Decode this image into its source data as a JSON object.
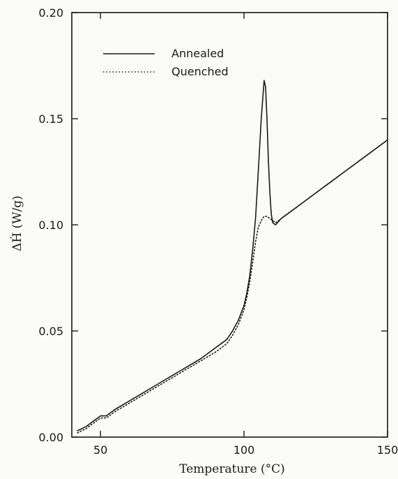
{
  "chart_data": {
    "type": "line",
    "title": "",
    "xlabel": "Temperature (°C)",
    "ylabel": "ΔḢ (W/g)",
    "xlim": [
      40,
      150
    ],
    "ylim": [
      0.0,
      0.2
    ],
    "x_ticks": [
      50,
      100,
      150
    ],
    "y_ticks": [
      0.0,
      0.05,
      0.1,
      0.15,
      0.2
    ],
    "x_tick_labels": [
      "50",
      "100",
      "150"
    ],
    "y_tick_labels": [
      "0.00",
      "0.05",
      "0.10",
      "0.15",
      "0.20"
    ],
    "grid": false,
    "legend_position": "top-left",
    "series": [
      {
        "name": "Annealed",
        "style": "solid",
        "color": "#1a1a1a",
        "points": [
          [
            42,
            0.003
          ],
          [
            45,
            0.005
          ],
          [
            48,
            0.008
          ],
          [
            50,
            0.01
          ],
          [
            52,
            0.01
          ],
          [
            55,
            0.013
          ],
          [
            60,
            0.017
          ],
          [
            65,
            0.021
          ],
          [
            70,
            0.025
          ],
          [
            75,
            0.029
          ],
          [
            80,
            0.033
          ],
          [
            85,
            0.037
          ],
          [
            90,
            0.042
          ],
          [
            94,
            0.046
          ],
          [
            96,
            0.05
          ],
          [
            98,
            0.055
          ],
          [
            100,
            0.062
          ],
          [
            101,
            0.068
          ],
          [
            102,
            0.076
          ],
          [
            103,
            0.088
          ],
          [
            104,
            0.103
          ],
          [
            105,
            0.126
          ],
          [
            106,
            0.15
          ],
          [
            107,
            0.168
          ],
          [
            107.5,
            0.165
          ],
          [
            108,
            0.15
          ],
          [
            108.5,
            0.13
          ],
          [
            109,
            0.115
          ],
          [
            109.5,
            0.105
          ],
          [
            110,
            0.101
          ],
          [
            111,
            0.1
          ],
          [
            113,
            0.103
          ],
          [
            115,
            0.105
          ],
          [
            120,
            0.11
          ],
          [
            125,
            0.115
          ],
          [
            130,
            0.12
          ],
          [
            135,
            0.125
          ],
          [
            140,
            0.13
          ],
          [
            145,
            0.135
          ],
          [
            148,
            0.138
          ],
          [
            150,
            0.14
          ]
        ]
      },
      {
        "name": "Quenched",
        "style": "dotted",
        "color": "#1a1a1a",
        "points": [
          [
            42,
            0.002
          ],
          [
            45,
            0.004
          ],
          [
            48,
            0.007
          ],
          [
            50,
            0.009
          ],
          [
            52,
            0.009
          ],
          [
            55,
            0.012
          ],
          [
            60,
            0.016
          ],
          [
            65,
            0.02
          ],
          [
            70,
            0.024
          ],
          [
            75,
            0.028
          ],
          [
            80,
            0.032
          ],
          [
            85,
            0.036
          ],
          [
            90,
            0.04
          ],
          [
            94,
            0.044
          ],
          [
            96,
            0.048
          ],
          [
            98,
            0.053
          ],
          [
            100,
            0.06
          ],
          [
            101,
            0.066
          ],
          [
            102,
            0.073
          ],
          [
            103,
            0.082
          ],
          [
            104,
            0.092
          ],
          [
            105,
            0.099
          ],
          [
            106,
            0.102
          ],
          [
            107,
            0.104
          ],
          [
            108,
            0.104
          ],
          [
            109,
            0.103
          ],
          [
            110,
            0.102
          ],
          [
            111,
            0.101
          ],
          [
            113,
            0.103
          ],
          [
            115,
            0.105
          ],
          [
            120,
            0.11
          ],
          [
            125,
            0.115
          ],
          [
            130,
            0.12
          ],
          [
            135,
            0.125
          ],
          [
            140,
            0.13
          ],
          [
            145,
            0.135
          ],
          [
            148,
            0.138
          ],
          [
            150,
            0.14
          ]
        ]
      }
    ]
  }
}
